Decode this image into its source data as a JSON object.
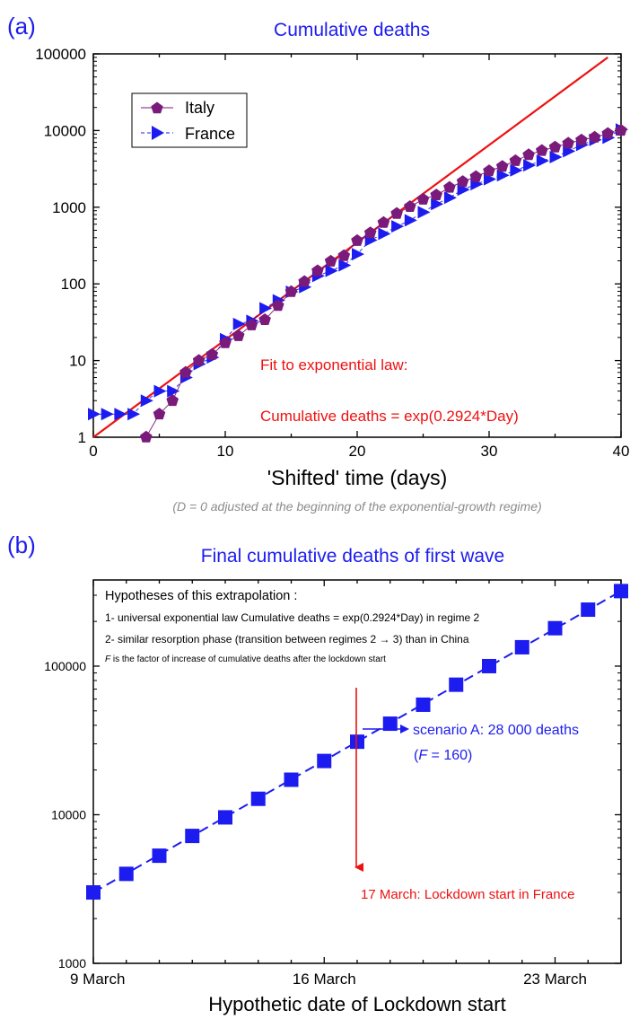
{
  "colors": {
    "blue": "#1c1cf0",
    "red": "#ee1111",
    "purple": "#7a1a7a",
    "gray": "#8c8c8c"
  },
  "chart_data": [
    {
      "type": "scatter",
      "panel_label": "(a)",
      "title": "Cumulative deaths",
      "xlabel": "'Shifted' time (days)",
      "ylabel": "",
      "xlim": [
        0,
        40
      ],
      "ylim": [
        1,
        100000
      ],
      "yscale": "log",
      "xticks": [
        "0",
        "10",
        "20",
        "30",
        "40"
      ],
      "yticks": [
        "1",
        "10",
        "100",
        "1000",
        "10000",
        "100000"
      ],
      "legend_position": "top-left",
      "caption": "(D = 0 adjusted at the beginning of the exponential-growth regime)",
      "annotations": [
        "Fit to exponential law:",
        "Cumulative deaths = exp(0.2924*Day)"
      ],
      "series": [
        {
          "name": "Italy",
          "marker": "pentagon",
          "color": "#7a1a7a",
          "x": [
            4,
            5,
            6,
            7,
            8,
            9,
            10,
            11,
            12,
            13,
            14,
            15,
            16,
            17,
            18,
            19,
            20,
            21,
            22,
            23,
            24,
            25,
            26,
            27,
            28,
            29,
            30,
            31,
            32,
            33,
            34,
            35,
            36,
            37,
            38,
            39,
            40
          ],
          "y": [
            1,
            2,
            3,
            7,
            10,
            12,
            17,
            21,
            29,
            34,
            52,
            79,
            107,
            148,
            197,
            233,
            366,
            463,
            631,
            827,
            1016,
            1266,
            1441,
            1809,
            2158,
            2503,
            2978,
            3405,
            4032,
            4825,
            5476,
            6077,
            6820,
            7503,
            8165,
            9134,
            10023
          ]
        },
        {
          "name": "France",
          "marker": "triangle-right",
          "color": "#1c1cf0",
          "x": [
            0,
            1,
            2,
            3,
            4,
            5,
            6,
            7,
            8,
            9,
            10,
            11,
            12,
            13,
            14,
            15,
            16,
            17,
            18,
            19,
            20,
            21,
            22,
            23,
            24,
            25,
            26,
            27,
            28,
            29,
            30,
            31,
            32,
            33,
            34,
            35,
            36,
            37,
            38,
            39,
            40
          ],
          "y": [
            2,
            2,
            2,
            2,
            3,
            4,
            4,
            6,
            9,
            11,
            19,
            30,
            33,
            48,
            61,
            79,
            91,
            127,
            148,
            175,
            244,
            372,
            450,
            562,
            674,
            860,
            1100,
            1331,
            1696,
            1995,
            2314,
            2606,
            3024,
            3523,
            4032,
            4503,
            5387,
            6507,
            7560,
            8078,
            10328
          ]
        },
        {
          "name": "",
          "type": "line",
          "color": "#ee1111",
          "equation": "exp(0.2924*Day)",
          "x": [
            0,
            39
          ],
          "y": [
            1,
            90000
          ]
        }
      ]
    },
    {
      "type": "line",
      "panel_label": "(b)",
      "title": "Final cumulative deaths of first wave",
      "xlabel": "Hypothetic date of Lockdown start",
      "ylabel": "",
      "yscale": "log",
      "ylim": [
        1000,
        380000
      ],
      "xticks": [
        "9 March",
        "16 March",
        "23 March"
      ],
      "yticks": [
        "1000",
        "10000",
        "100000"
      ],
      "hypotheses": {
        "title": "Hypotheses of this extrapolation :",
        "line1": "1- universal exponential law Cumulative deaths = exp(0.2924*Day) in regime 2",
        "line2": "2- similar resorption phase (transition between regimes 2 → 3) than in China",
        "line3_factor": "F",
        "line3_rest": " is the factor of  increase of cumulative deaths after the lockdown start"
      },
      "scenario_label": "scenario A: 28 000 deaths",
      "scenario_f_open": "(",
      "scenario_f_var": "F",
      "scenario_f_rest": " = 160)",
      "lockdown_label": "17 March: Lockdown start in France",
      "series": [
        {
          "name": "",
          "marker": "square",
          "color": "#1c1cf0",
          "x_day_of_march": [
            9,
            10,
            11,
            12,
            13,
            14,
            15,
            16,
            17,
            18,
            19,
            20,
            21,
            22,
            23,
            24,
            25
          ],
          "y": [
            3000,
            4000,
            5300,
            7200,
            9600,
            12800,
            17200,
            23000,
            31000,
            41000,
            55000,
            75000,
            100000,
            134000,
            180000,
            240000,
            320000
          ]
        }
      ]
    }
  ]
}
